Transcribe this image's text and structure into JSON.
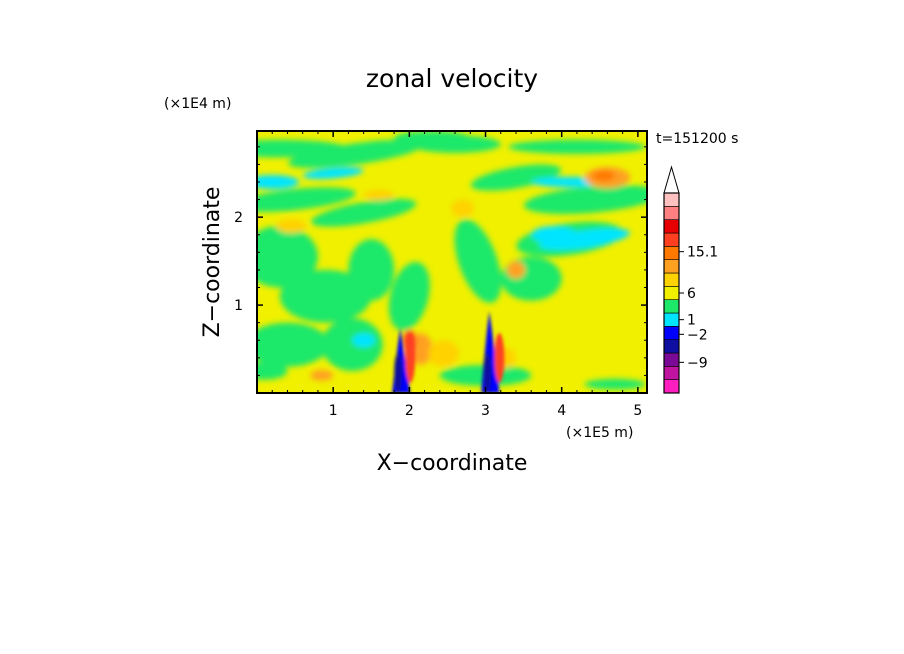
{
  "chart_data": {
    "type": "heatmap",
    "title": "zonal velocity",
    "xlabel": "X−coordinate",
    "ylabel": "Z−coordinate",
    "x_unit": "(×1E5 m)",
    "y_unit": "(×1E4 m)",
    "time_label": "t=151200 s",
    "xlim": [
      0,
      5.12
    ],
    "ylim": [
      0,
      2.98
    ],
    "x_ticks": [
      {
        "value": 1,
        "label": "1"
      },
      {
        "value": 2,
        "label": "2"
      },
      {
        "value": 3,
        "label": "3"
      },
      {
        "value": 4,
        "label": "4"
      },
      {
        "value": 5,
        "label": "5"
      }
    ],
    "y_ticks": [
      {
        "value": 1,
        "label": "1"
      },
      {
        "value": 2,
        "label": "2"
      }
    ],
    "colorbar": {
      "labels": [
        {
          "text": "15.1",
          "level": 10.6
        },
        {
          "text": "6",
          "level": 7.5
        },
        {
          "text": "1",
          "level": 5.5
        },
        {
          "text": "−2",
          "level": 4.4
        },
        {
          "text": "−9",
          "level": 2.3
        }
      ],
      "colors": [
        "#ff1fc0",
        "#c0139f",
        "#7a0a96",
        "#0e0ea0",
        "#0000ff",
        "#00e5ff",
        "#1ee86a",
        "#f0f000",
        "#ffd200",
        "#ffa020",
        "#ff7800",
        "#ff4020",
        "#e80000",
        "#ff8080",
        "#ffc0c0"
      ],
      "extend": "max"
    },
    "features": [
      {
        "kind": "mountain-jet",
        "x": 1.88,
        "top": 0.74
      },
      {
        "kind": "mountain-jet",
        "x": 3.05,
        "top": 0.93
      }
    ]
  }
}
